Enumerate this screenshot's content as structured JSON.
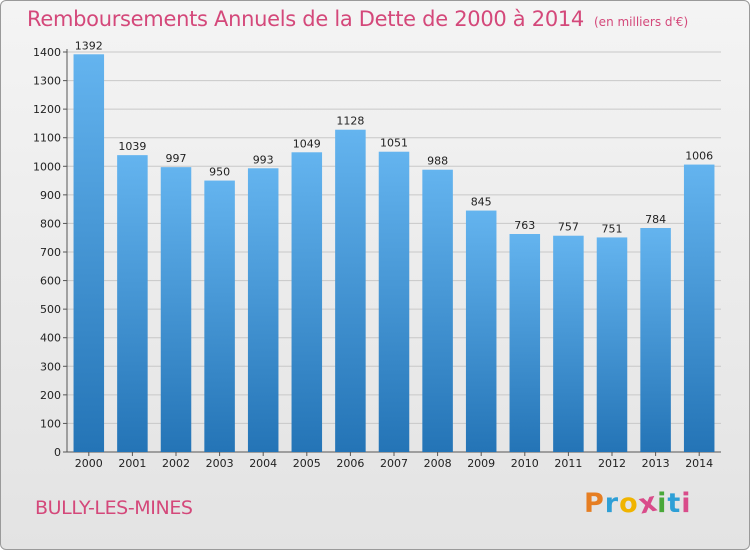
{
  "chart_data": {
    "type": "bar",
    "title": "Remboursements Annuels de la Dette de 2000 à 2014",
    "subtitle": "(en milliers d'€)",
    "categories": [
      "2000",
      "2001",
      "2002",
      "2003",
      "2004",
      "2005",
      "2006",
      "2007",
      "2008",
      "2009",
      "2010",
      "2011",
      "2012",
      "2013",
      "2014"
    ],
    "values": [
      1392,
      1039,
      997,
      950,
      993,
      1049,
      1128,
      1051,
      988,
      845,
      763,
      757,
      751,
      784,
      1006
    ],
    "ylim": [
      0,
      1400
    ],
    "yticks": [
      0,
      100,
      200,
      300,
      400,
      500,
      600,
      700,
      800,
      900,
      1000,
      1100,
      1200,
      1300,
      1400
    ],
    "xlabel": "",
    "ylabel": "",
    "grid": true,
    "bar_color": "#3a8fd8"
  },
  "footer": {
    "city": "BULLY-LES-MINES",
    "logo_letters": [
      "P",
      "r",
      "o",
      "x",
      "i",
      "t",
      "i"
    ],
    "logo_colors": [
      "#e67e22",
      "#2e9fd6",
      "#f0b400",
      "#d94c8a",
      "#4aa83a",
      "#2e9fd6",
      "#d94c8a"
    ]
  }
}
